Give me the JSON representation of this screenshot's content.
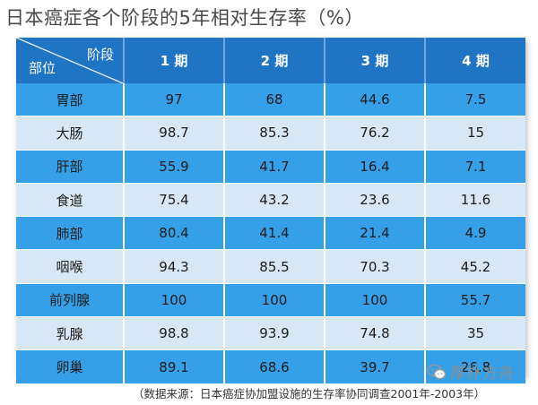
{
  "title": "日本癌症各个阶段的5年相对生存率（%）",
  "table": {
    "corner_stage": "阶段",
    "corner_part": "部位",
    "columns": [
      "1 期",
      "2 期",
      "3 期",
      "4 期"
    ],
    "rows": [
      {
        "site": "胃部",
        "values": [
          "97",
          "68",
          "44.6",
          "7.5"
        ]
      },
      {
        "site": "大肠",
        "values": [
          "98.7",
          "85.3",
          "76.2",
          "15"
        ]
      },
      {
        "site": "肝部",
        "values": [
          "55.9",
          "41.7",
          "16.4",
          "7.1"
        ]
      },
      {
        "site": "食道",
        "values": [
          "75.4",
          "43.2",
          "23.6",
          "11.6"
        ]
      },
      {
        "site": "肺部",
        "values": [
          "80.4",
          "41.4",
          "21.4",
          "4.9"
        ]
      },
      {
        "site": "咽喉",
        "values": [
          "94.3",
          "85.5",
          "70.3",
          "45.2"
        ]
      },
      {
        "site": "前列腺",
        "values": [
          "100",
          "100",
          "100",
          "55.7"
        ]
      },
      {
        "site": "乳腺",
        "values": [
          "98.8",
          "93.9",
          "74.8",
          "35"
        ]
      },
      {
        "site": "卵巢",
        "values": [
          "89.1",
          "68.6",
          "39.7",
          "26.8"
        ]
      }
    ]
  },
  "footer": "（数据来源：日本癌症协加盟设施的生存率协同调查2001年-2003年）",
  "watermark": {
    "text": "厚朴方舟",
    "icon": "wechat-icon"
  },
  "colors": {
    "header_bg": "#1f74c4",
    "row_dark": "#35a0e8",
    "row_light": "#d7e7f5"
  }
}
